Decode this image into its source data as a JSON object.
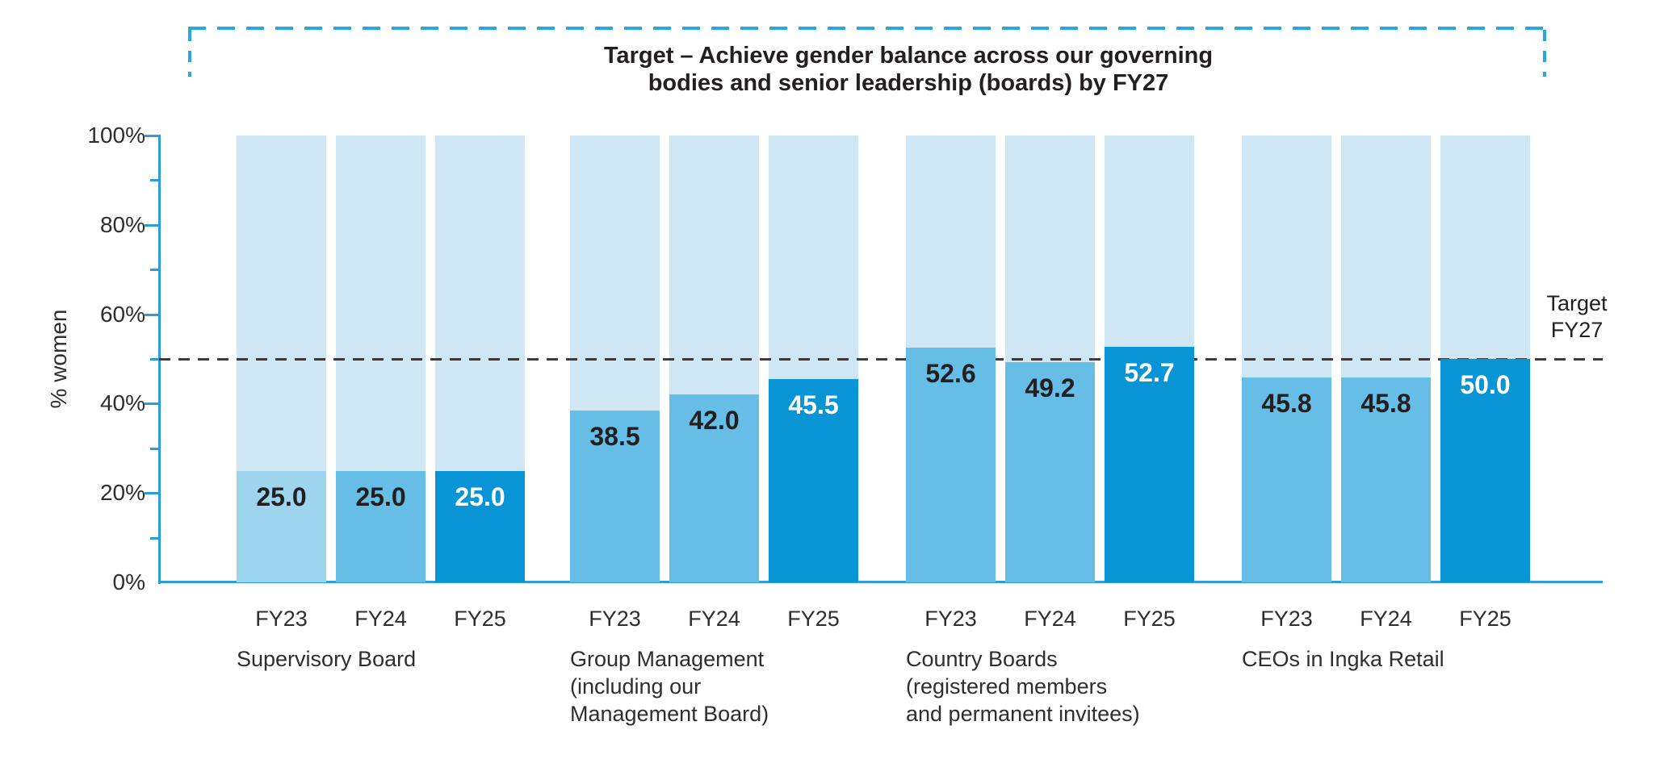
{
  "page": {
    "background": "#ffffff"
  },
  "colors": {
    "track_bar": "#cfe7f4",
    "bar_light": "#9dd4ee",
    "bar_medium": "#66bee6",
    "bar_dark": "#0994d6",
    "axis": "#2d9dd7",
    "bracket": "#2aa7de",
    "target_line": "#3c3c3c",
    "text_dark": "#231f20",
    "value_label_on_dark": "#ffffff"
  },
  "chart_data": {
    "type": "bar",
    "title": "Target – Achieve gender balance across our governing\nbodies and senior leadership (boards) by FY27",
    "ylabel": "% women",
    "xlabel": "",
    "ylim": [
      0,
      100
    ],
    "ytick_values": [
      0,
      20,
      40,
      60,
      80,
      100
    ],
    "ytick_labels": [
      "0%",
      "20%",
      "40%",
      "60%",
      "80%",
      "100%"
    ],
    "minor_tick_values": [
      10,
      30,
      50,
      70,
      90
    ],
    "grid": false,
    "legend": "none",
    "target_line": {
      "value": 50,
      "label": "Target\nFY27"
    },
    "categories": [
      "FY23",
      "FY24",
      "FY25"
    ],
    "groups": [
      {
        "label": "Supervisory Board",
        "bars": [
          {
            "year": "FY23",
            "value": 25.0,
            "display": "25.0",
            "shade": "light"
          },
          {
            "year": "FY24",
            "value": 25.0,
            "display": "25.0",
            "shade": "medium"
          },
          {
            "year": "FY25",
            "value": 25.0,
            "display": "25.0",
            "shade": "dark"
          }
        ]
      },
      {
        "label": "Group Management\n(including our\nManagement Board)",
        "bars": [
          {
            "year": "FY23",
            "value": 38.5,
            "display": "38.5",
            "shade": "medium"
          },
          {
            "year": "FY24",
            "value": 42.0,
            "display": "42.0",
            "shade": "medium"
          },
          {
            "year": "FY25",
            "value": 45.5,
            "display": "45.5",
            "shade": "dark"
          }
        ]
      },
      {
        "label": "Country Boards\n(registered members\nand permanent invitees)",
        "bars": [
          {
            "year": "FY23",
            "value": 52.6,
            "display": "52.6",
            "shade": "medium"
          },
          {
            "year": "FY24",
            "value": 49.2,
            "display": "49.2",
            "shade": "medium"
          },
          {
            "year": "FY25",
            "value": 52.7,
            "display": "52.7",
            "shade": "dark"
          }
        ]
      },
      {
        "label": "CEOs in Ingka Retail",
        "bars": [
          {
            "year": "FY23",
            "value": 45.8,
            "display": "45.8",
            "shade": "medium"
          },
          {
            "year": "FY24",
            "value": 45.8,
            "display": "45.8",
            "shade": "medium"
          },
          {
            "year": "FY25",
            "value": 50.0,
            "display": "50.0",
            "shade": "dark"
          }
        ]
      }
    ]
  }
}
